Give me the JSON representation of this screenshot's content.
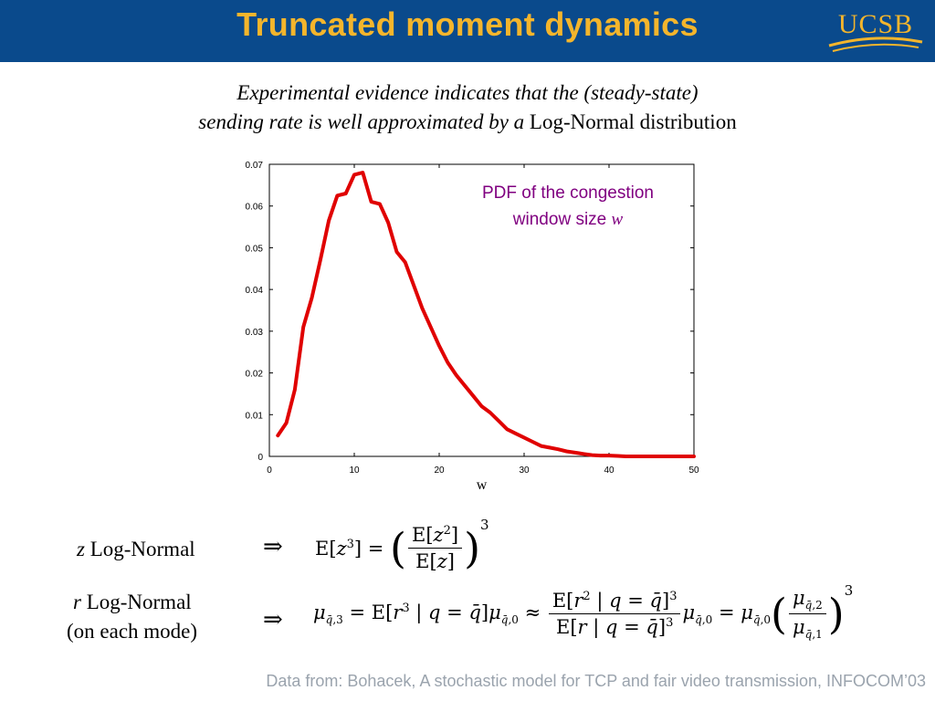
{
  "header": {
    "title": "Truncated moment dynamics",
    "logo_text": "UCSB",
    "bg_color": "#0a4a8c",
    "accent_color": "#f4b52c"
  },
  "subtitle": {
    "line1": "Experimental evidence indicates that the (steady-state)",
    "line2_italic": "sending rate is well approximated by a",
    "line2_normal": " Log-Normal distribution"
  },
  "chart_data": {
    "type": "line",
    "xlabel": "w",
    "ylabel": "",
    "xlim": [
      0,
      50
    ],
    "ylim": [
      0,
      0.07
    ],
    "xticks": [
      "0",
      "10",
      "20",
      "30",
      "40",
      "50"
    ],
    "yticks": [
      "0",
      "0.01",
      "0.02",
      "0.03",
      "0.04",
      "0.05",
      "0.06",
      "0.07"
    ],
    "annotation": "PDF of the congestion",
    "annotation_line2": "window size",
    "annotation_var": "w",
    "line_color": "#e00000",
    "annotation_color": "#800080",
    "series": [
      {
        "x": [
          1,
          2,
          3,
          4,
          5,
          6,
          7,
          8,
          9,
          10,
          11,
          12,
          13,
          14,
          15,
          16,
          17,
          18,
          19,
          20,
          21,
          22,
          23,
          24,
          25,
          26,
          27,
          28,
          29,
          30,
          31,
          32,
          33,
          34,
          35,
          36,
          37,
          38,
          39,
          40,
          41,
          42,
          43,
          44,
          45,
          46,
          47,
          48,
          49,
          50
        ],
        "y": [
          0.005,
          0.008,
          0.016,
          0.031,
          0.038,
          0.047,
          0.0565,
          0.0625,
          0.063,
          0.0675,
          0.068,
          0.061,
          0.0605,
          0.056,
          0.049,
          0.0465,
          0.041,
          0.0355,
          0.031,
          0.0265,
          0.0225,
          0.0195,
          0.017,
          0.0145,
          0.012,
          0.0105,
          0.0085,
          0.0065,
          0.0055,
          0.0045,
          0.0035,
          0.0025,
          0.0021,
          0.0017,
          0.0012,
          0.0009,
          0.0006,
          0.0003,
          0.0002,
          0.0002,
          0.0001,
          0,
          0,
          0,
          0,
          0,
          0,
          0,
          0,
          0
        ]
      }
    ]
  },
  "rows": {
    "row1_var": "z",
    "row1_label": " Log-Normal",
    "row2_var": "r",
    "row2_label": " Log-Normal",
    "row2_sub": "(on each mode)",
    "implies": "⇒"
  },
  "footer": "Data from: Bohacek, A stochastic model for TCP and fair video transmission, INFOCOM’03"
}
